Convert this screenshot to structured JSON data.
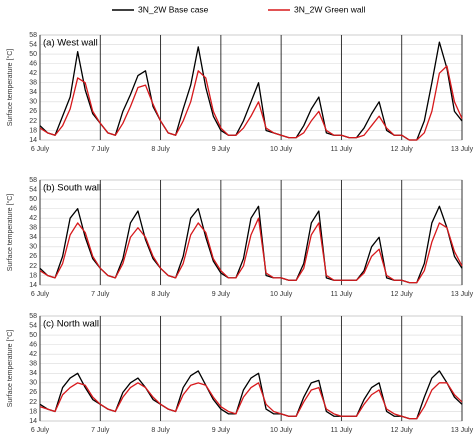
{
  "chart_data": [
    {
      "type": "line",
      "title": "(a) West wall",
      "ylabel": "Surface temperature [°C]",
      "legend": "top",
      "x": [
        0,
        3,
        6,
        9,
        12,
        15,
        18,
        21,
        24,
        27,
        30,
        33,
        36,
        39,
        42,
        45,
        48,
        51,
        54,
        57,
        60,
        63,
        66,
        69,
        72,
        75,
        78,
        81,
        84,
        87,
        90,
        93,
        96,
        99,
        102,
        105,
        108,
        111,
        114,
        117,
        120,
        123,
        126,
        129,
        132,
        135,
        138,
        141,
        144,
        147,
        150,
        153,
        156,
        159,
        162,
        165,
        168
      ],
      "xlim": [
        0,
        168
      ],
      "xticks": [
        {
          "value": 0,
          "label": "6 July"
        },
        {
          "value": 24,
          "label": "7 July"
        },
        {
          "value": 48,
          "label": "8 July"
        },
        {
          "value": 72,
          "label": "9 July"
        },
        {
          "value": 96,
          "label": "10 July"
        },
        {
          "value": 120,
          "label": "11 July"
        },
        {
          "value": 144,
          "label": "12 July"
        },
        {
          "value": 168,
          "label": "13 July"
        }
      ],
      "ylim": [
        14,
        58
      ],
      "yticks": [
        14,
        18,
        22,
        26,
        30,
        34,
        38,
        42,
        46,
        50,
        54,
        58
      ],
      "grid": true,
      "series": [
        {
          "name": "3N_2W Base case",
          "color": "#000000",
          "values": [
            20,
            17,
            16,
            24,
            32,
            51,
            35,
            25,
            21,
            17,
            16,
            26,
            33,
            41,
            43,
            28,
            22,
            17,
            16,
            27,
            37,
            53,
            36,
            24,
            18,
            16,
            16,
            22,
            30,
            38,
            18,
            17,
            16,
            15,
            15,
            20,
            27,
            32,
            17,
            16,
            16,
            15,
            15,
            19,
            25,
            30,
            18,
            16,
            16,
            14,
            14,
            22,
            38,
            55,
            44,
            26,
            22
          ]
        },
        {
          "name": "3N_2W Green wall",
          "color": "#d7191c",
          "values": [
            19,
            17,
            16,
            20,
            27,
            40,
            38,
            26,
            21,
            17,
            16,
            21,
            28,
            36,
            37,
            29,
            22,
            17,
            16,
            22,
            30,
            43,
            40,
            26,
            19,
            16,
            16,
            19,
            24,
            30,
            19,
            17,
            16,
            15,
            15,
            17,
            22,
            26,
            18,
            16,
            16,
            15,
            15,
            16,
            20,
            24,
            19,
            16,
            16,
            14,
            14,
            17,
            26,
            42,
            45,
            30,
            23
          ]
        }
      ]
    },
    {
      "type": "line",
      "title": "(b) South wall",
      "ylabel": "Surface temperature [°C]",
      "x": [
        0,
        3,
        6,
        9,
        12,
        15,
        18,
        21,
        24,
        27,
        30,
        33,
        36,
        39,
        42,
        45,
        48,
        51,
        54,
        57,
        60,
        63,
        66,
        69,
        72,
        75,
        78,
        81,
        84,
        87,
        90,
        93,
        96,
        99,
        102,
        105,
        108,
        111,
        114,
        117,
        120,
        123,
        126,
        129,
        132,
        135,
        138,
        141,
        144,
        147,
        150,
        153,
        156,
        159,
        162,
        165,
        168
      ],
      "xlim": [
        0,
        168
      ],
      "xticks": [
        {
          "value": 0,
          "label": "6 July"
        },
        {
          "value": 24,
          "label": "7 July"
        },
        {
          "value": 48,
          "label": "8 July"
        },
        {
          "value": 72,
          "label": "9 July"
        },
        {
          "value": 96,
          "label": "10 July"
        },
        {
          "value": 120,
          "label": "11 July"
        },
        {
          "value": 144,
          "label": "12 July"
        },
        {
          "value": 168,
          "label": "13 July"
        }
      ],
      "ylim": [
        14,
        58
      ],
      "yticks": [
        14,
        18,
        22,
        26,
        30,
        34,
        38,
        42,
        46,
        50,
        54,
        58
      ],
      "grid": true,
      "series": [
        {
          "color": "#000000",
          "values": [
            21,
            18,
            17,
            26,
            42,
            46,
            34,
            25,
            21,
            18,
            17,
            25,
            40,
            45,
            33,
            25,
            21,
            18,
            17,
            26,
            42,
            46,
            34,
            24,
            19,
            17,
            17,
            25,
            42,
            47,
            18,
            17,
            17,
            16,
            16,
            23,
            40,
            45,
            17,
            16,
            16,
            16,
            16,
            20,
            30,
            34,
            17,
            16,
            16,
            15,
            15,
            23,
            40,
            47,
            38,
            26,
            21
          ]
        },
        {
          "color": "#d7191c",
          "values": [
            20,
            18,
            17,
            23,
            35,
            40,
            36,
            26,
            21,
            18,
            17,
            23,
            34,
            38,
            34,
            26,
            21,
            18,
            17,
            23,
            35,
            40,
            36,
            25,
            20,
            17,
            17,
            22,
            35,
            42,
            19,
            17,
            17,
            16,
            16,
            21,
            35,
            40,
            18,
            16,
            16,
            16,
            16,
            19,
            26,
            29,
            18,
            16,
            16,
            15,
            15,
            20,
            32,
            40,
            38,
            28,
            22
          ]
        }
      ]
    },
    {
      "type": "line",
      "title": "(c) North wall",
      "ylabel": "Surface temperature [°C]",
      "x": [
        0,
        3,
        6,
        9,
        12,
        15,
        18,
        21,
        24,
        27,
        30,
        33,
        36,
        39,
        42,
        45,
        48,
        51,
        54,
        57,
        60,
        63,
        66,
        69,
        72,
        75,
        78,
        81,
        84,
        87,
        90,
        93,
        96,
        99,
        102,
        105,
        108,
        111,
        114,
        117,
        120,
        123,
        126,
        129,
        132,
        135,
        138,
        141,
        144,
        147,
        150,
        153,
        156,
        159,
        162,
        165,
        168
      ],
      "xlim": [
        0,
        168
      ],
      "xticks": [
        {
          "value": 0,
          "label": "6 July"
        },
        {
          "value": 24,
          "label": "7 July"
        },
        {
          "value": 48,
          "label": "8 July"
        },
        {
          "value": 72,
          "label": "9 July"
        },
        {
          "value": 96,
          "label": "10 July"
        },
        {
          "value": 120,
          "label": "11 July"
        },
        {
          "value": 144,
          "label": "12 July"
        },
        {
          "value": 168,
          "label": "13 July"
        }
      ],
      "ylim": [
        14,
        58
      ],
      "yticks": [
        14,
        18,
        22,
        26,
        30,
        34,
        38,
        42,
        46,
        50,
        54,
        58
      ],
      "grid": true,
      "series": [
        {
          "color": "#000000",
          "values": [
            21,
            19,
            18,
            28,
            32,
            34,
            28,
            23,
            21,
            19,
            18,
            26,
            30,
            32,
            28,
            23,
            21,
            19,
            18,
            28,
            33,
            35,
            29,
            23,
            19,
            17,
            17,
            27,
            32,
            34,
            19,
            17,
            17,
            16,
            16,
            24,
            30,
            31,
            18,
            16,
            16,
            16,
            16,
            23,
            28,
            30,
            18,
            16,
            16,
            15,
            15,
            24,
            32,
            35,
            30,
            24,
            21
          ]
        },
        {
          "color": "#d7191c",
          "values": [
            20,
            19,
            18,
            25,
            28,
            30,
            29,
            24,
            21,
            19,
            18,
            24,
            28,
            30,
            28,
            24,
            21,
            19,
            18,
            25,
            29,
            30,
            29,
            24,
            20,
            18,
            17,
            24,
            28,
            30,
            21,
            18,
            17,
            16,
            16,
            22,
            27,
            28,
            19,
            17,
            16,
            16,
            16,
            21,
            25,
            27,
            19,
            17,
            16,
            15,
            15,
            20,
            27,
            30,
            30,
            25,
            22
          ]
        }
      ]
    }
  ]
}
